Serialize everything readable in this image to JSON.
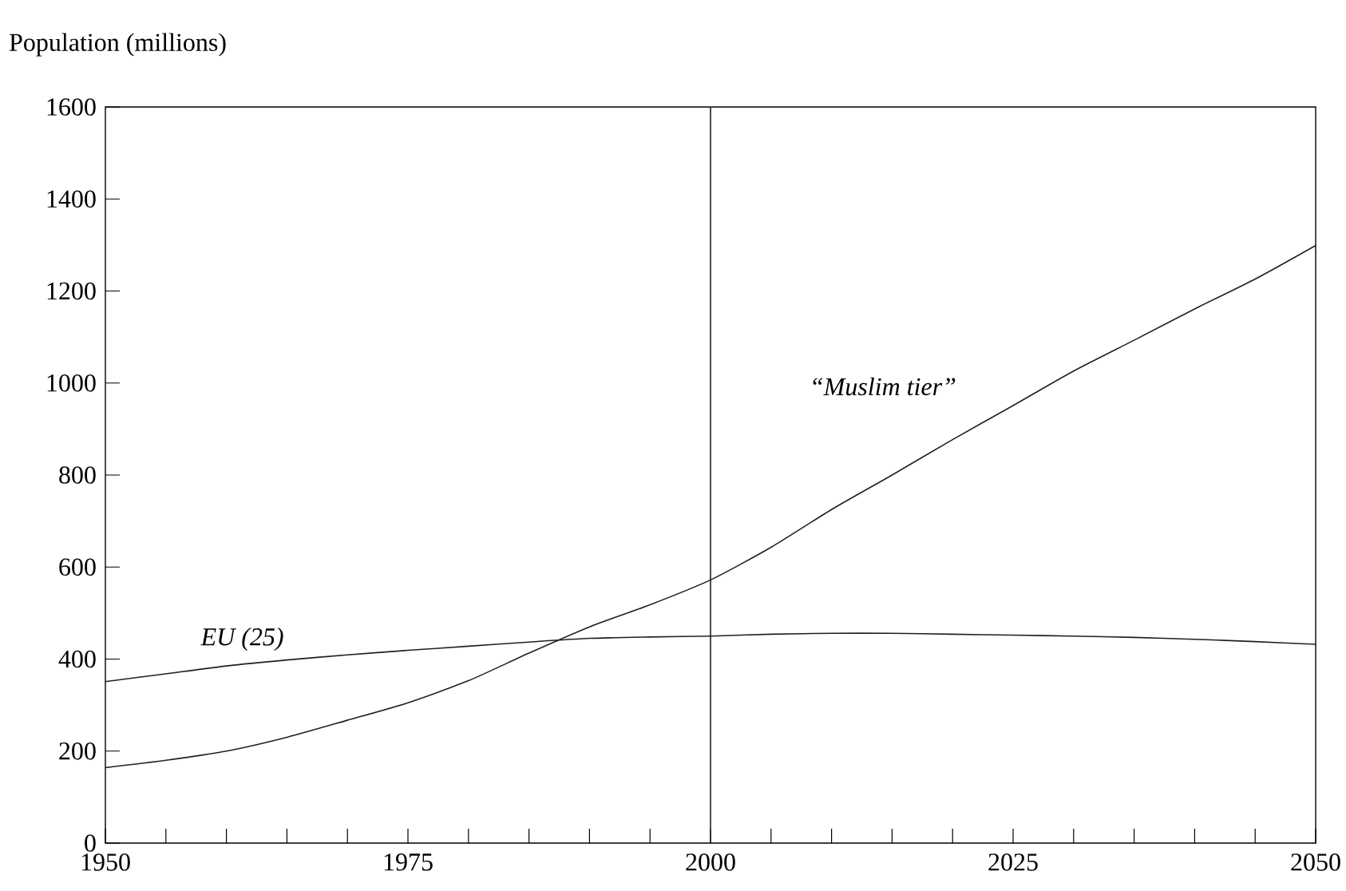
{
  "chart_data": {
    "type": "line",
    "ylabel": "Population (millions)",
    "x": [
      1950,
      1955,
      1960,
      1965,
      1970,
      1975,
      1980,
      1985,
      1990,
      1995,
      2000,
      2005,
      2010,
      2015,
      2020,
      2025,
      2030,
      2035,
      2040,
      2045,
      2050
    ],
    "series": [
      {
        "name": "EU (25)",
        "color": "#231f20",
        "values": [
          351,
          368,
          385,
          398,
          409,
          419,
          428,
          437,
          445,
          448,
          450,
          454,
          456,
          456,
          454,
          452,
          450,
          447,
          443,
          438,
          432
        ]
      },
      {
        "name": "“Muslim tier”",
        "color": "#231f20",
        "values": [
          164,
          180,
          200,
          230,
          267,
          305,
          353,
          413,
          470,
          518,
          572,
          643,
          725,
          800,
          877,
          951,
          1026,
          1093,
          1161,
          1226,
          1299
        ]
      }
    ],
    "xlim": [
      1950,
      2050
    ],
    "ylim": [
      0,
      1600
    ],
    "xticks": [
      1950,
      1975,
      2000,
      2025,
      2050
    ],
    "yticks": [
      0,
      200,
      400,
      600,
      800,
      1000,
      1200,
      1400,
      1600
    ],
    "ref_lines": [
      {
        "axis": "x",
        "value": 2000,
        "color": "#231f20"
      }
    ],
    "grid": false,
    "legend": false,
    "marker": "none",
    "line_style": "solid"
  }
}
